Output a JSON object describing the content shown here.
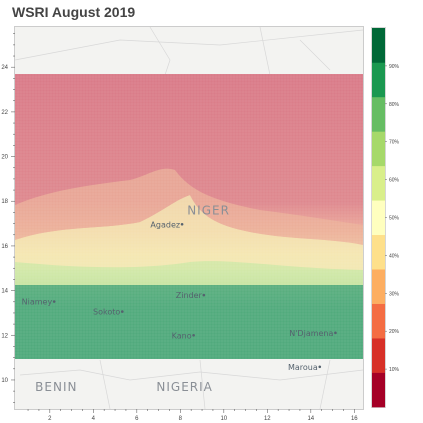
{
  "title": "WSRI August 2019",
  "x_axis": {
    "ticks": [
      "2",
      "4",
      "6",
      "8",
      "10",
      "12",
      "14",
      "16"
    ]
  },
  "y_axis": {
    "ticks": [
      "10",
      "12",
      "14",
      "16",
      "18",
      "20",
      "22",
      "24"
    ]
  },
  "places": [
    {
      "name": "Agadez",
      "lon": 7.99,
      "lat": 16.97
    },
    {
      "name": "Niamey",
      "lon": 2.11,
      "lat": 13.51
    },
    {
      "name": "Sokoto",
      "lon": 5.24,
      "lat": 13.06
    },
    {
      "name": "Zinder",
      "lon": 8.99,
      "lat": 13.8
    },
    {
      "name": "Kano",
      "lon": 8.52,
      "lat": 12.0
    },
    {
      "name": "N'Djamena",
      "lon": 15.04,
      "lat": 12.11
    },
    {
      "name": "Maroua",
      "lon": 14.32,
      "lat": 10.59
    }
  ],
  "countries": [
    {
      "name": "NIGER",
      "lon": 9.3,
      "lat": 17.4
    },
    {
      "name": "NIGERIA",
      "lon": 8.2,
      "lat": 9.5
    },
    {
      "name": "BENIN",
      "lon": 2.3,
      "lat": 9.5
    }
  ],
  "colorbar": {
    "ticks": [
      "10%",
      "20%",
      "30%",
      "40%",
      "50%",
      "60%",
      "70%",
      "80%",
      "90%"
    ],
    "colors": [
      "#a50026",
      "#d73027",
      "#f46d43",
      "#fdae61",
      "#fee08b",
      "#ffffbf",
      "#d9ef8b",
      "#a6d96a",
      "#66bd63",
      "#1a9850",
      "#006837"
    ]
  },
  "colors": {
    "dry": "#d9707e",
    "mid": "#f2efb8",
    "wet": "#4ea97a"
  }
}
